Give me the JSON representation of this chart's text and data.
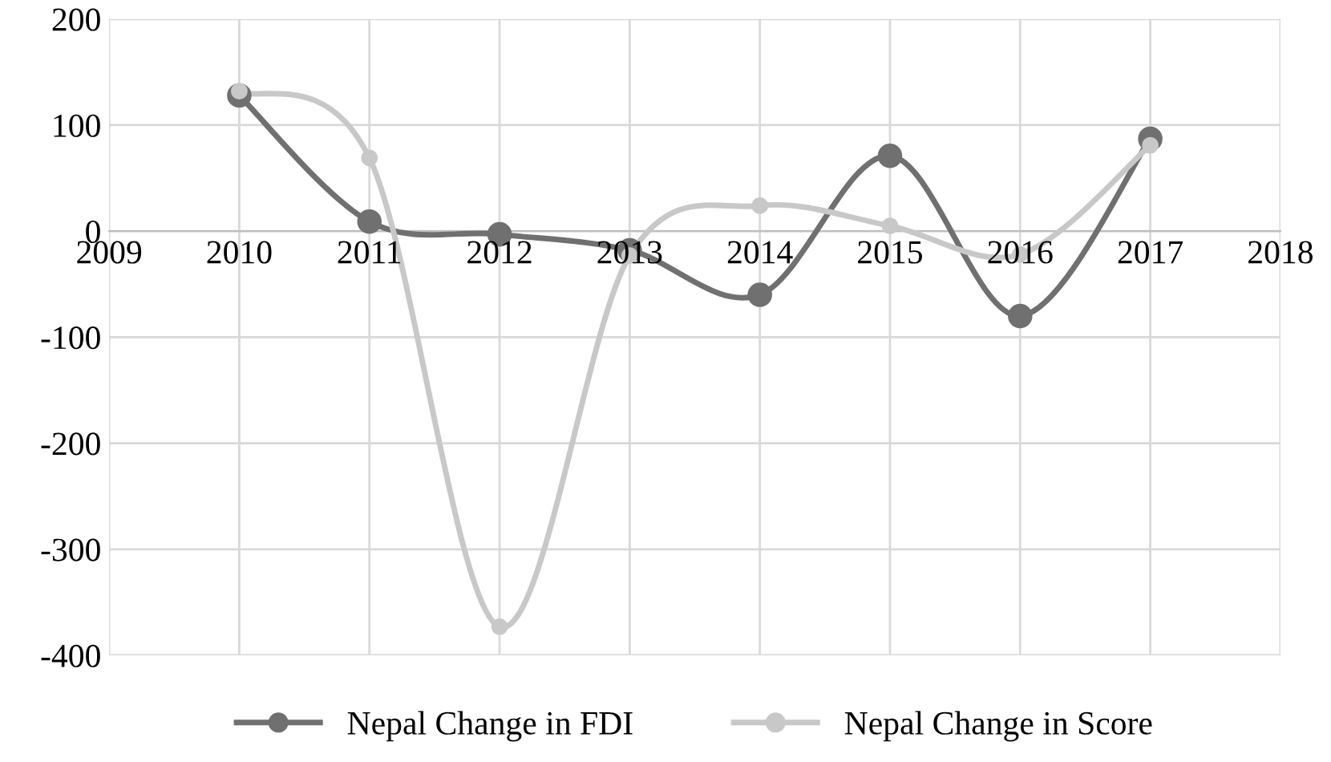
{
  "chart_data": {
    "type": "line",
    "x": [
      2010,
      2011,
      2012,
      2013,
      2014,
      2015,
      2016,
      2017
    ],
    "series": [
      {
        "name": "Nepal Change in FDI",
        "color": "#707070",
        "values": [
          128,
          9,
          -3,
          -18,
          -60,
          71,
          -80,
          87
        ]
      },
      {
        "name": "Nepal Change in Score",
        "color": "#c8c8c8",
        "values": [
          132,
          69,
          -373,
          -23,
          24,
          5,
          -22,
          81
        ]
      }
    ],
    "xlim": [
      2009,
      2018
    ],
    "xticks": [
      2009,
      2010,
      2011,
      2012,
      2013,
      2014,
      2015,
      2016,
      2017,
      2018
    ],
    "ylim": [
      -400,
      200
    ],
    "yticks": [
      -400,
      -300,
      -200,
      -100,
      0,
      100,
      200
    ],
    "grid": true,
    "legend": "bottom",
    "marker": "circle",
    "line_style": "solid"
  }
}
